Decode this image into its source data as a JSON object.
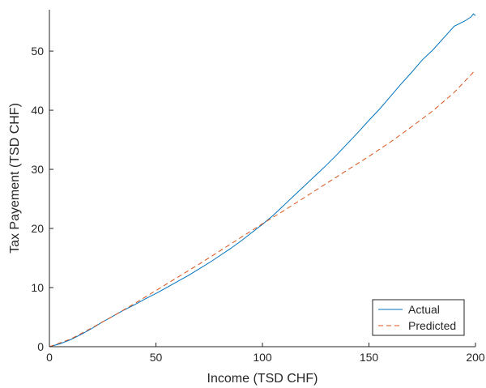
{
  "chart_data": {
    "type": "line",
    "xlabel": "Income (TSD CHF)",
    "ylabel": "Tax Payement (TSD CHF)",
    "xlim": [
      0,
      200
    ],
    "ylim": [
      0,
      57
    ],
    "xticks": [
      0,
      50,
      100,
      150,
      200
    ],
    "yticks": [
      0,
      10,
      20,
      30,
      40,
      50
    ],
    "grid": false,
    "legend_position": "bottom-right",
    "series": [
      {
        "name": "Actual",
        "color": "#0072BD",
        "style": "solid",
        "x": [
          0,
          5,
          10,
          15,
          20,
          25,
          30,
          35,
          40,
          45,
          50,
          55,
          60,
          65,
          70,
          75,
          80,
          85,
          90,
          95,
          100,
          105,
          110,
          115,
          120,
          125,
          130,
          135,
          140,
          145,
          150,
          155,
          160,
          165,
          170,
          175,
          180,
          185,
          190,
          195,
          198,
          199,
          200
        ],
        "y": [
          0,
          0.5,
          1.2,
          2.1,
          3.1,
          4.2,
          5.2,
          6.2,
          7.1,
          8.1,
          9.0,
          10.0,
          11.0,
          12.0,
          13.1,
          14.2,
          15.4,
          16.6,
          17.9,
          19.3,
          20.7,
          22.2,
          23.9,
          25.6,
          27.3,
          29.0,
          30.7,
          32.5,
          34.4,
          36.3,
          38.3,
          40.2,
          42.3,
          44.4,
          46.4,
          48.5,
          50.2,
          52.2,
          54.2,
          55.1,
          55.8,
          56.3,
          56.0
        ]
      },
      {
        "name": "Predicted",
        "color": "#D95319",
        "style": "dashed",
        "x": [
          0,
          10,
          20,
          30,
          40,
          50,
          60,
          70,
          80,
          90,
          100,
          110,
          120,
          130,
          140,
          150,
          160,
          170,
          180,
          190,
          200
        ],
        "y": [
          0,
          1.3,
          3.2,
          5.2,
          7.3,
          9.5,
          11.7,
          13.9,
          16.2,
          18.5,
          20.8,
          23.0,
          25.3,
          27.6,
          29.9,
          32.2,
          34.6,
          37.2,
          39.9,
          43.0,
          46.8
        ]
      }
    ]
  }
}
